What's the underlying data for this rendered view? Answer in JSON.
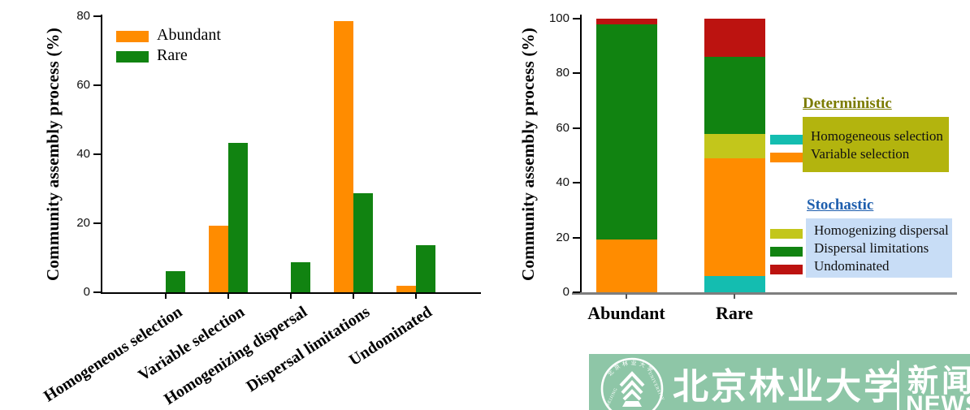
{
  "chart_data": [
    {
      "type": "bar",
      "grouped": true,
      "title": "",
      "ylabel": "Community assembly process (%)",
      "xlabel": "",
      "ylim": [
        0,
        80
      ],
      "yticks": [
        0,
        20,
        40,
        60,
        80
      ],
      "grid": false,
      "legend_position": "top-left-inside",
      "categories": [
        "Homogeneous selection",
        "Variable selection",
        "Homogenizing dispersal",
        "Dispersal limitations",
        "Undominated"
      ],
      "series": [
        {
          "name": "Abundant",
          "color": "#FF8C00",
          "values": [
            0,
            19.3,
            0,
            78.6,
            2.0
          ]
        },
        {
          "name": "Rare",
          "color": "#118311",
          "values": [
            6.1,
            43.3,
            8.7,
            28.6,
            13.7
          ]
        }
      ]
    },
    {
      "type": "bar",
      "stacked": true,
      "title": "",
      "ylabel": "Community assembly process (%)",
      "xlabel": "",
      "ylim": [
        0,
        100
      ],
      "yticks": [
        0,
        20,
        40,
        60,
        80,
        100
      ],
      "grid": false,
      "legend_position": "right-outside",
      "categories": [
        "Abundant",
        "Rare"
      ],
      "series": [
        {
          "name": "Homogeneous selection",
          "group": "Deterministic",
          "color": "#14BDB0",
          "values": [
            0,
            6.0
          ]
        },
        {
          "name": "Variable selection",
          "group": "Deterministic",
          "color": "#FF8C00",
          "values": [
            19.3,
            43.0
          ]
        },
        {
          "name": "Homogenizing dispersal",
          "group": "Stochastic",
          "color": "#C3C61B",
          "values": [
            0,
            9.0
          ]
        },
        {
          "name": "Dispersal limitations",
          "group": "Stochastic",
          "color": "#118311",
          "values": [
            78.7,
            28.0
          ]
        },
        {
          "name": "Undominated",
          "group": "Stochastic",
          "color": "#BC1310",
          "values": [
            2.0,
            14.0
          ]
        }
      ]
    }
  ],
  "right_legend": {
    "groups": [
      {
        "title": "Deterministic",
        "title_color": "#7B7B00",
        "box_color": "#B3B40E",
        "items": [
          {
            "label": "Homogeneous selection",
            "color": "#14BDB0"
          },
          {
            "label": "Variable selection",
            "color": "#FF8C00"
          }
        ]
      },
      {
        "title": "Stochastic",
        "title_color": "#1F5FAE",
        "box_color": "#C8DDF6",
        "items": [
          {
            "label": "Homogenizing dispersal",
            "color": "#C3C61B"
          },
          {
            "label": "Dispersal limitations",
            "color": "#118311"
          },
          {
            "label": "Undominated",
            "color": "#BC1310"
          }
        ]
      }
    ]
  },
  "banner": {
    "bg": "#8EC6A7",
    "university_cn": "北京林业大学",
    "news_cn": "新闻",
    "news_en": "NEWS",
    "seal": {
      "arc_top": "北京林业大学",
      "ring_left": "BEIJING",
      "ring_right": "UNIVERSITY",
      "year": "1952"
    }
  }
}
